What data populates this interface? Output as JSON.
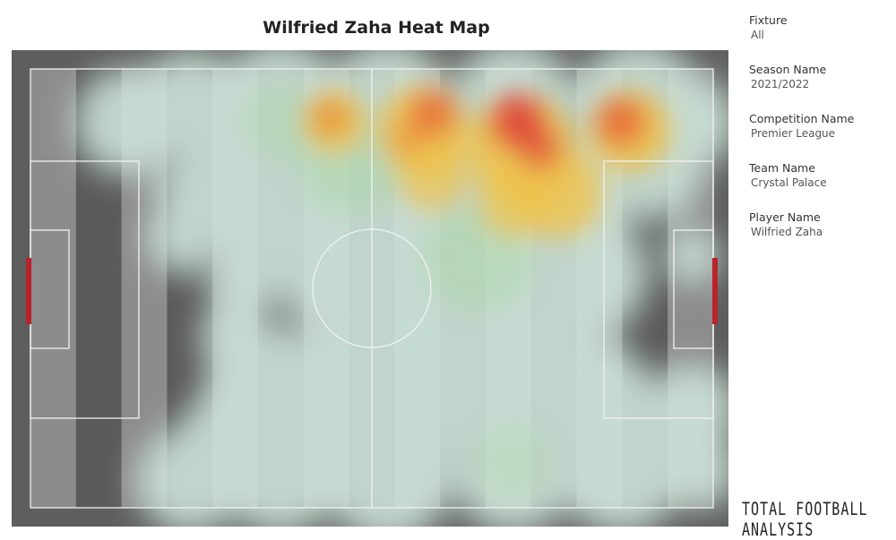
{
  "title": "Wilfried Zaha Heat Map",
  "filters": [
    {
      "label": "Fixture",
      "value": "All"
    },
    {
      "label": "Season Name",
      "value": "2021/2022"
    },
    {
      "label": "Competition Name",
      "value": "Premier League"
    },
    {
      "label": "Team Name",
      "value": "Crystal Palace"
    },
    {
      "label": "Player Name",
      "value": "Wilfried Zaha"
    }
  ],
  "logo": "TOTAL FOOTBALL ANALYSIS",
  "colors": {
    "low": "#cfe6dc",
    "mid": "#a8d6a0",
    "high": "#f0c24a",
    "peak": "#e0443a",
    "goal": "#b8242a"
  },
  "chart_data": {
    "type": "heatmap",
    "title": "Wilfried Zaha Heat Map",
    "pitch": "football pitch, horizontal",
    "colorscale": [
      "mint",
      "green",
      "yellow",
      "orange",
      "red"
    ],
    "hotspots": [
      {
        "x": 44,
        "y": 12,
        "intensity": 0.7
      },
      {
        "x": 57,
        "y": 12,
        "intensity": 0.85
      },
      {
        "x": 70,
        "y": 14,
        "intensity": 1.0
      },
      {
        "x": 86,
        "y": 13,
        "intensity": 0.85
      },
      {
        "x": 75,
        "y": 25,
        "intensity": 0.6
      },
      {
        "x": 82,
        "y": 30,
        "intensity": 0.5
      }
    ]
  }
}
